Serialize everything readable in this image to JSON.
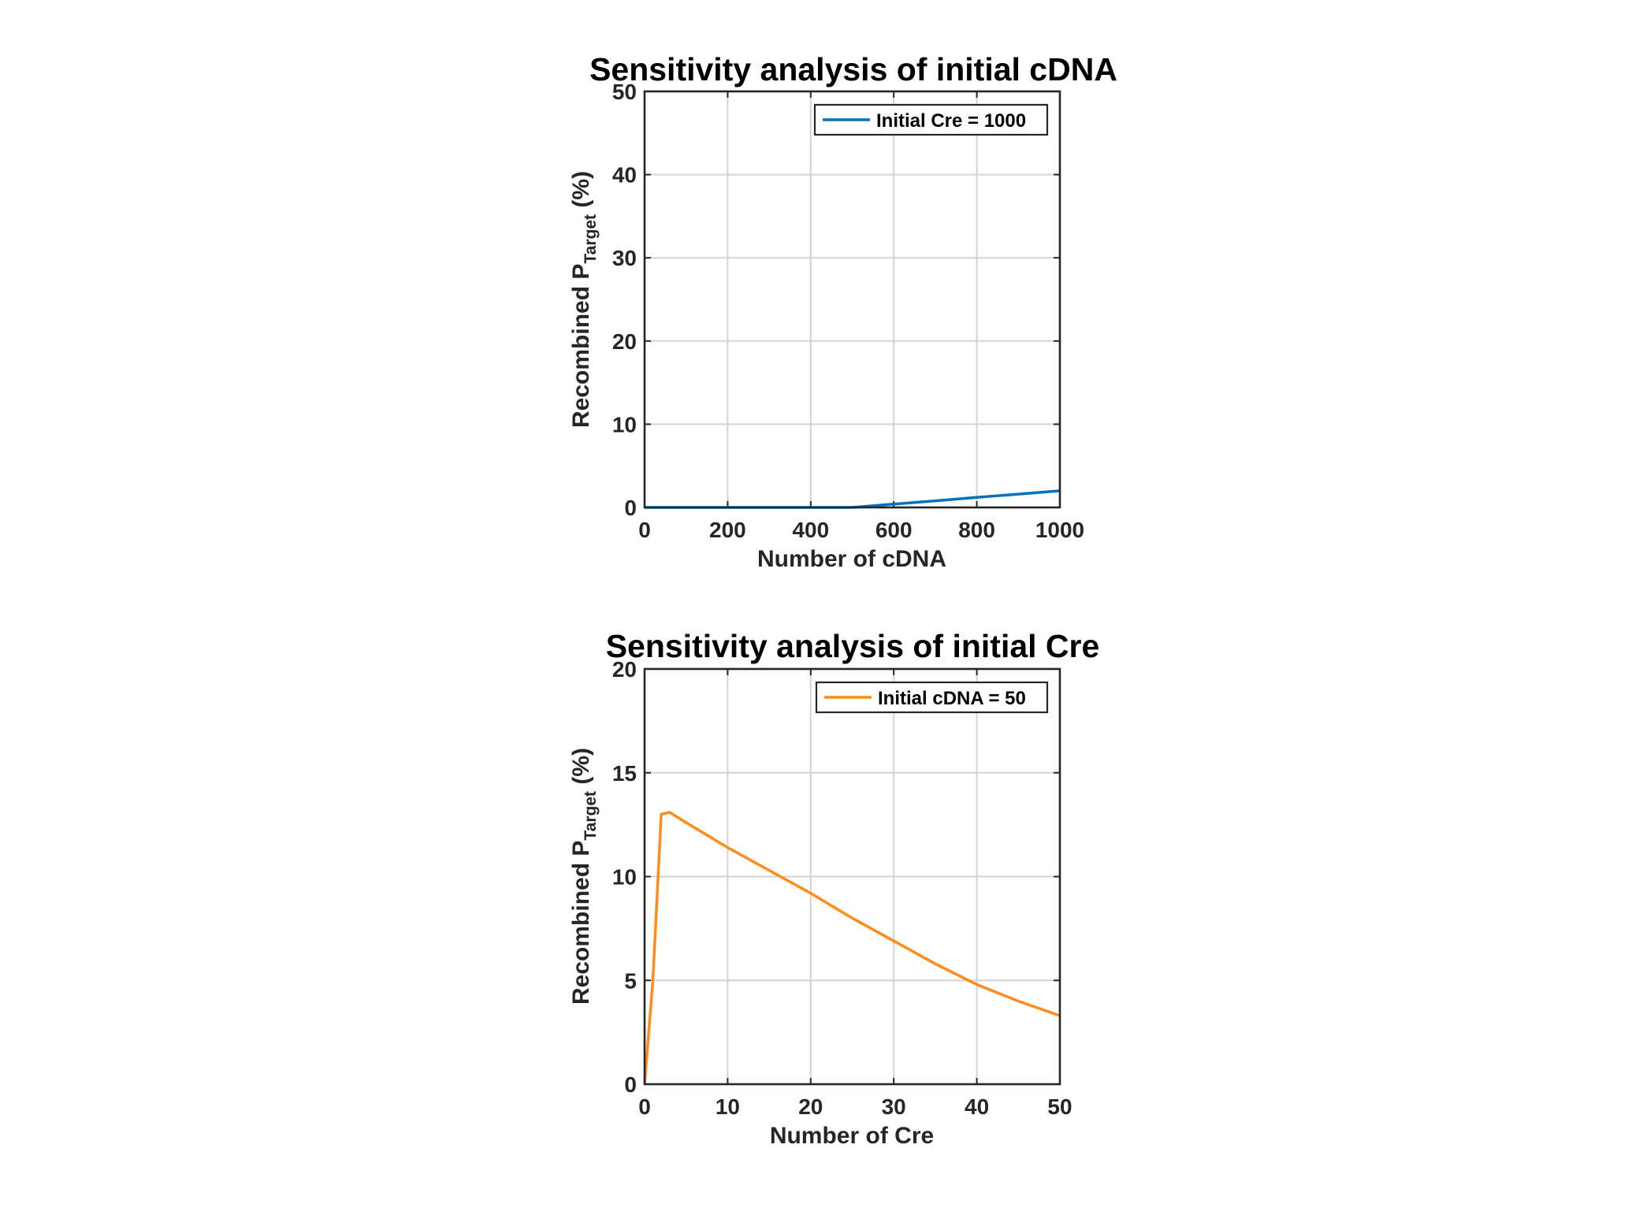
{
  "chart_data": [
    {
      "type": "line",
      "title": "Sensitivity analysis of initial cDNA",
      "xlabel": "Number of cDNA",
      "ylabel": {
        "main": "Recombined P",
        "subscript": "Target",
        "suffix": " (%)"
      },
      "xlim": [
        0,
        1000
      ],
      "ylim": [
        0,
        50
      ],
      "xticks": [
        "0",
        "200",
        "400",
        "600",
        "800",
        "1000"
      ],
      "yticks": [
        "0",
        "10",
        "20",
        "30",
        "40",
        "50"
      ],
      "grid": true,
      "legend_position": "top-right",
      "series": [
        {
          "name": "Initial Cre = 1000",
          "color": "#0072bd",
          "x": [
            0,
            100,
            200,
            300,
            400,
            500,
            600,
            700,
            800,
            900,
            1000
          ],
          "y": [
            0,
            0,
            0,
            0,
            0,
            0,
            0.4,
            0.8,
            1.2,
            1.6,
            2.0
          ]
        }
      ]
    },
    {
      "type": "line",
      "title": "Sensitivity analysis of initial Cre",
      "xlabel": "Number of Cre",
      "ylabel": {
        "main": "Recombined P",
        "subscript": "Target",
        "suffix": " (%)"
      },
      "xlim": [
        0,
        50
      ],
      "ylim": [
        0,
        20
      ],
      "xticks": [
        "0",
        "10",
        "20",
        "30",
        "40",
        "50"
      ],
      "yticks": [
        "0",
        "5",
        "10",
        "15",
        "20"
      ],
      "grid": true,
      "legend_position": "top-right",
      "series": [
        {
          "name": "Initial cDNA = 50",
          "color": "#ff8c1a",
          "x": [
            0,
            1,
            2,
            3,
            5,
            10,
            15,
            20,
            25,
            30,
            35,
            40,
            45,
            50
          ],
          "y": [
            0,
            5.0,
            13.0,
            13.1,
            12.6,
            11.4,
            10.3,
            9.2,
            8.0,
            6.9,
            5.8,
            4.8,
            4.0,
            3.3
          ]
        }
      ]
    }
  ]
}
